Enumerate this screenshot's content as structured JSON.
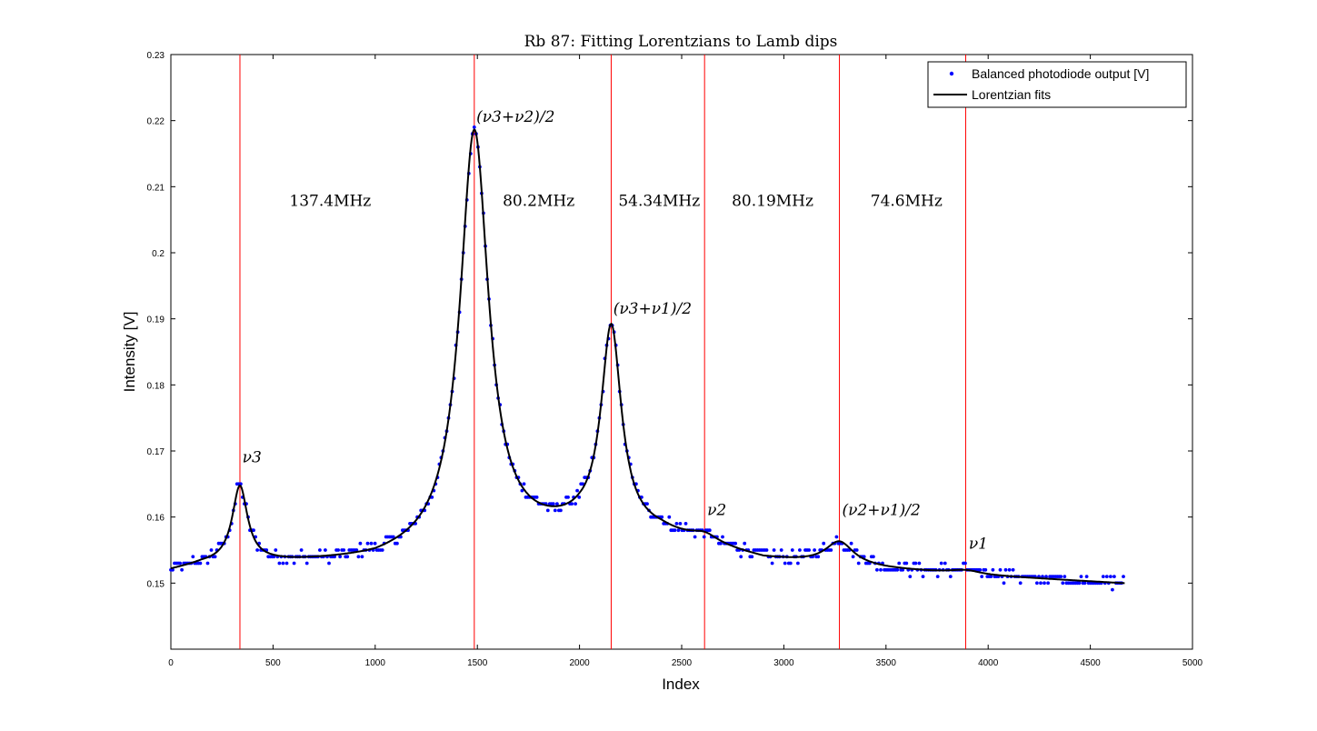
{
  "chart_data": {
    "type": "scatter",
    "title": "Rb 87: Fitting Lorentzians to Lamb dips",
    "xlabel": "Index",
    "ylabel": "Intensity [V]",
    "xlim": [
      0,
      5000
    ],
    "ylim": [
      0.14,
      0.23
    ],
    "xticks": [
      "0",
      "500",
      "1000",
      "1500",
      "2000",
      "2500",
      "3000",
      "3500",
      "4000",
      "4500",
      "5000"
    ],
    "yticks": [
      "0.15",
      "0.16",
      "0.17",
      "0.18",
      "0.19",
      "0.2",
      "0.21",
      "0.22",
      "0.23"
    ],
    "grid": false,
    "legend": {
      "position": "top-right",
      "entries": [
        {
          "label": "Balanced photodiode output [V]",
          "color": "#0000ff",
          "marker": "dot"
        },
        {
          "label": "Lorentzian fits",
          "color": "#000000",
          "marker": "line"
        }
      ]
    },
    "baseline": [
      [
        0,
        0.1518
      ],
      [
        150,
        0.1527
      ],
      [
        300,
        0.153
      ],
      [
        600,
        0.153
      ],
      [
        1000,
        0.1533
      ],
      [
        2000,
        0.158
      ],
      [
        2400,
        0.1572
      ],
      [
        2900,
        0.1535
      ],
      [
        3500,
        0.152
      ],
      [
        4000,
        0.151
      ],
      [
        4670,
        0.1499
      ]
    ],
    "peaks": [
      {
        "x": 338,
        "amplitude": 0.0114,
        "hwhm": 45,
        "label": "ν3"
      },
      {
        "x": 1485,
        "amplitude": 0.0628,
        "hwhm": 85,
        "label": "(ν3+ν2)/2"
      },
      {
        "x": 2155,
        "amplitude": 0.0305,
        "hwhm": 60,
        "label": "(ν3+ν1)/2"
      },
      {
        "x": 2612,
        "amplitude": 0.0012,
        "hwhm": 80,
        "label": "ν2"
      },
      {
        "x": 3272,
        "amplitude": 0.0035,
        "hwhm": 85,
        "label": "(ν2+ν1)/2"
      },
      {
        "x": 3890,
        "amplitude": 0.0006,
        "hwhm": 90,
        "label": "ν1"
      }
    ],
    "x_data_range": [
      0,
      4670
    ],
    "vertical_lines": [
      338,
      1485,
      2155,
      2612,
      3272,
      3890
    ],
    "vline_color": "#ff0000",
    "spacing_annotations": [
      {
        "text": "137.4MHz",
        "x": 780,
        "y": 0.2071
      },
      {
        "text": "80.2MHz",
        "x": 1800,
        "y": 0.2071
      },
      {
        "text": "54.34MHz",
        "x": 2390,
        "y": 0.2071
      },
      {
        "text": "80.19MHz",
        "x": 2945,
        "y": 0.2071
      },
      {
        "text": "74.6MHz",
        "x": 3600,
        "y": 0.2071
      }
    ],
    "peak_labels": [
      {
        "text": "ν3",
        "sub": "3",
        "x": 350,
        "y": 0.1683
      },
      {
        "text": "(ν3+ν2)/2",
        "x": 1495,
        "y": 0.2198
      },
      {
        "text": "(ν3+ν1)/2",
        "x": 2165,
        "y": 0.1908
      },
      {
        "text": "ν2",
        "sub": "2",
        "x": 2625,
        "y": 0.1603
      },
      {
        "text": "(ν2+ν1)/2",
        "x": 3285,
        "y": 0.1603
      },
      {
        "text": "ν1",
        "sub": "1",
        "x": 3905,
        "y": 0.1552
      }
    ]
  }
}
